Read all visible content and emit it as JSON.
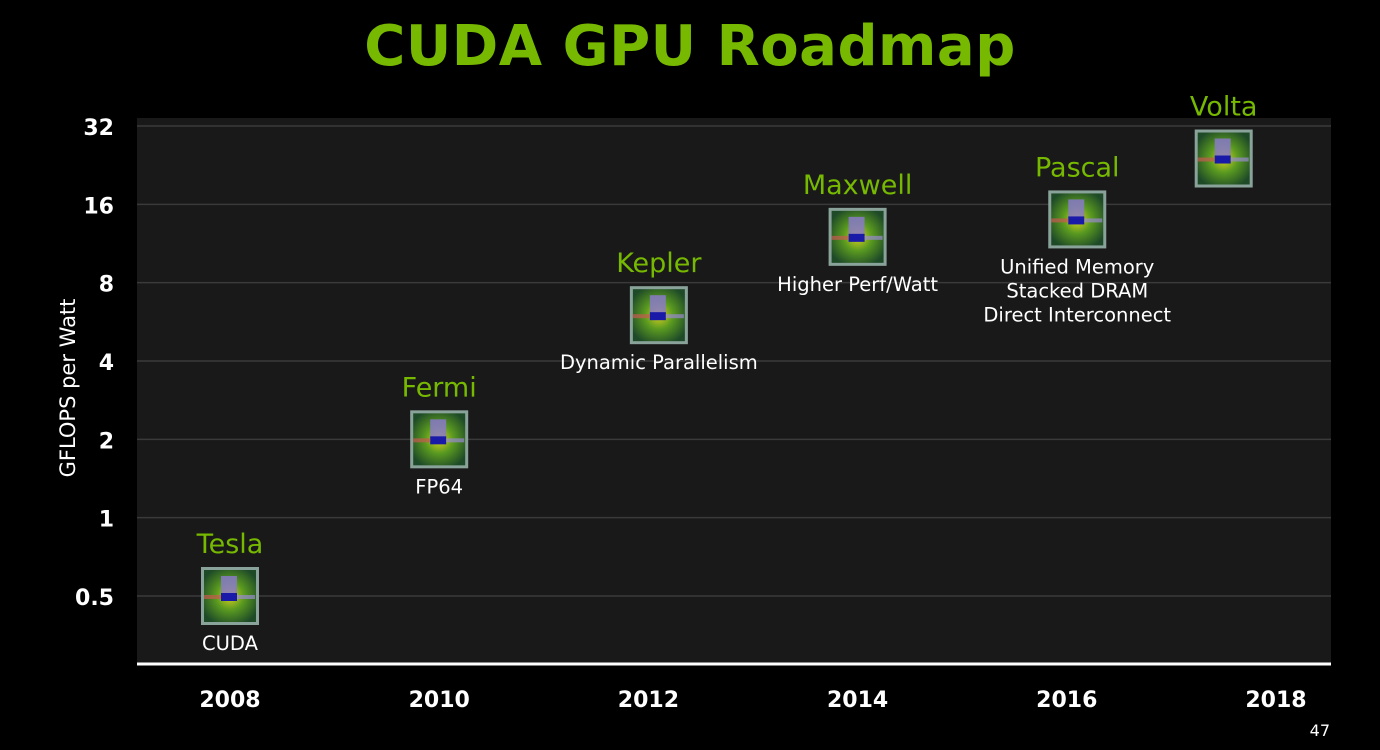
{
  "slide": {
    "title": "CUDA GPU Roadmap",
    "page_number": "47"
  },
  "chart_data": {
    "type": "scatter",
    "title": "CUDA GPU Roadmap",
    "xlabel": "",
    "ylabel": "GFLOPS per Watt",
    "y_scale": "log2",
    "ylim": [
      0.35,
      32
    ],
    "xlim": [
      2008,
      2018
    ],
    "x_ticks": [
      "2008",
      "2010",
      "2012",
      "2014",
      "2016",
      "2018"
    ],
    "y_ticks": [
      "0.5",
      "1",
      "2",
      "4",
      "8",
      "16",
      "32"
    ],
    "grid": true,
    "marker": "gpu-die-icon",
    "colors": {
      "accent": "#76b900",
      "background": "#000000",
      "plot_background": "#191919",
      "grid": "#3a3a3a"
    },
    "points": [
      {
        "name": "Tesla",
        "x": 2008.0,
        "y": 0.5,
        "features": [
          "CUDA"
        ]
      },
      {
        "name": "Fermi",
        "x": 2010.0,
        "y": 2.0,
        "features": [
          "FP64"
        ]
      },
      {
        "name": "Kepler",
        "x": 2012.1,
        "y": 6.0,
        "features": [
          "Dynamic Parallelism"
        ]
      },
      {
        "name": "Maxwell",
        "x": 2014.0,
        "y": 12.0,
        "features": [
          "Higher Perf/Watt"
        ]
      },
      {
        "name": "Pascal",
        "x": 2016.1,
        "y": 14.0,
        "features": [
          "Unified Memory",
          "Stacked DRAM",
          "Direct Interconnect"
        ]
      },
      {
        "name": "Volta",
        "x": 2017.5,
        "y": 24.0,
        "features": []
      }
    ]
  }
}
